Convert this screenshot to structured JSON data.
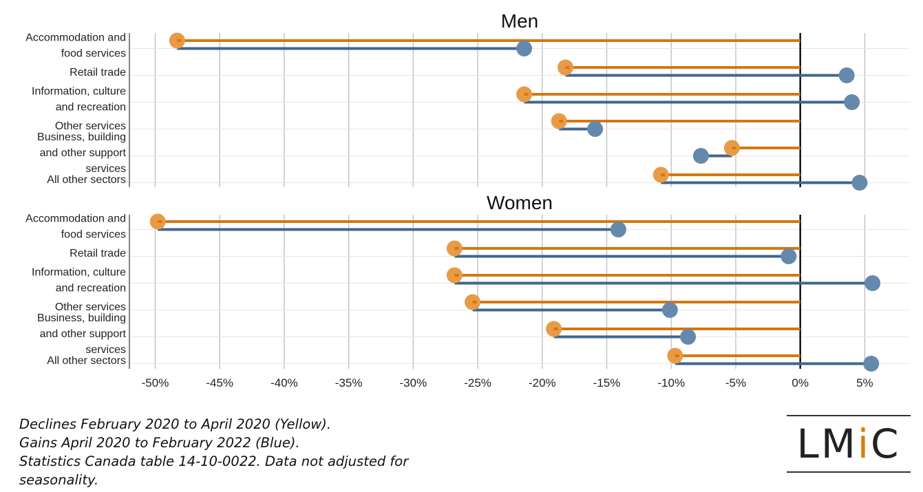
{
  "chart_data": [
    {
      "type": "dot-dumbbell",
      "title": "Men",
      "categories": [
        [
          "Accommodation and",
          "food services"
        ],
        [
          "Retail trade"
        ],
        [
          "Information, culture",
          "and recreation"
        ],
        [
          "Other services"
        ],
        [
          "Business, building",
          "and other support",
          "services"
        ],
        [
          "All other sectors"
        ]
      ],
      "series": [
        {
          "color": "#d4780f",
          "dot_color": "#e89a45",
          "values": [
            -48.3,
            -18.2,
            -21.4,
            -18.7,
            -5.3,
            -10.8
          ]
        },
        {
          "color": "#3e6791",
          "dot_color": "#6589ad",
          "values": [
            -21.4,
            3.6,
            4.0,
            -15.9,
            -7.7,
            4.6
          ]
        }
      ],
      "xlim": [
        -52,
        8.5
      ],
      "xticks": [
        -50,
        -45,
        -40,
        -35,
        -30,
        -25,
        -20,
        -15,
        -10,
        -5,
        0,
        5
      ]
    },
    {
      "type": "dot-dumbbell",
      "title": "Women",
      "categories": [
        [
          "Accommodation and",
          "food services"
        ],
        [
          "Retail trade"
        ],
        [
          "Information, culture",
          "and recreation"
        ],
        [
          "Other services"
        ],
        [
          "Business, building",
          "and other support",
          "services"
        ],
        [
          "All other sectors"
        ]
      ],
      "series": [
        {
          "color": "#d4780f",
          "dot_color": "#e89a45",
          "values": [
            -49.8,
            -26.8,
            -26.8,
            -25.4,
            -19.1,
            -9.7
          ]
        },
        {
          "color": "#3e6791",
          "dot_color": "#6589ad",
          "values": [
            -14.1,
            -0.9,
            5.6,
            -10.1,
            -8.7,
            5.5
          ]
        }
      ],
      "xlim": [
        -52,
        8.5
      ],
      "xticks": [
        -50,
        -45,
        -40,
        -35,
        -30,
        -25,
        -20,
        -15,
        -10,
        -5,
        0,
        5
      ]
    }
  ],
  "axis": {
    "tick_labels": [
      "-50%",
      "-45%",
      "-40%",
      "-35%",
      "-30%",
      "-25%",
      "-20%",
      "-15%",
      "-10%",
      "-5%",
      "0%",
      "5%"
    ]
  },
  "footnote": [
    "Declines February 2020 to April 2020 (Yellow).",
    "Gains April 2020 to February 2022 (Blue).",
    "Statistics Canada table 14-10-0022. Data not adjusted for",
    "seasonality."
  ],
  "logo": {
    "prefix": "LM",
    "accent": "i",
    "suffix": "C",
    "accent_color": "#e07b00"
  }
}
